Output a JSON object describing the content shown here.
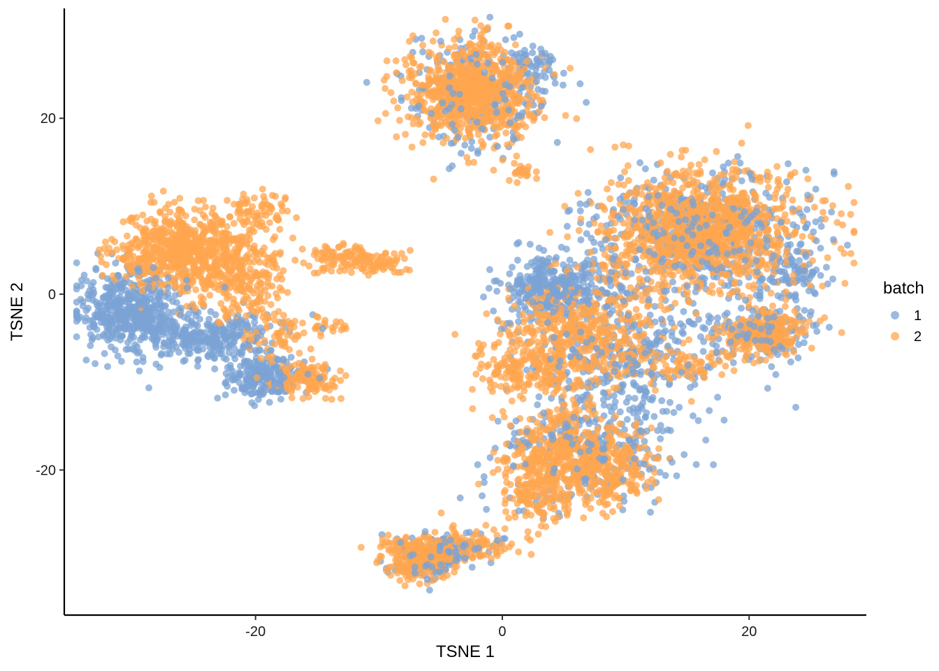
{
  "chart_data": {
    "type": "scatter",
    "xlabel": "TSNE 1",
    "ylabel": "TSNE 2",
    "xlim": [
      -35.5,
      29.5
    ],
    "ylim": [
      -36.5,
      32.5
    ],
    "x_ticks": [
      -20,
      0,
      20
    ],
    "y_ticks": [
      -20,
      0,
      20
    ],
    "x_tick_labels": [
      "-20",
      "0",
      "20"
    ],
    "y_tick_labels": [
      "-20",
      "0",
      "20"
    ],
    "grid": false,
    "legend": {
      "title": "batch",
      "position": "right",
      "entries": [
        {
          "label": "1",
          "color": "#7BA3D4"
        },
        {
          "label": "2",
          "color": "#FFA54F"
        }
      ]
    },
    "point_alpha": 0.75,
    "series": [
      {
        "name": "1",
        "color": "#7BA3D4",
        "clusters": [
          {
            "cx": -30,
            "cy": -2,
            "sx": 2.2,
            "sy": 2.4,
            "n": 520
          },
          {
            "cx": -23.5,
            "cy": -5,
            "sx": 2.6,
            "sy": 1.4,
            "n": 280
          },
          {
            "cx": -19.5,
            "cy": -9.5,
            "sx": 1.8,
            "sy": 1.2,
            "n": 200
          },
          {
            "cx": -2,
            "cy": 23,
            "sx": 3.0,
            "sy": 3.2,
            "n": 220
          },
          {
            "cx": 2.5,
            "cy": 25.5,
            "sx": 1.0,
            "sy": 1.2,
            "n": 60
          },
          {
            "cx": 4.5,
            "cy": 0.5,
            "sx": 2.2,
            "sy": 2.0,
            "n": 380
          },
          {
            "cx": 16,
            "cy": 7,
            "sx": 4.5,
            "sy": 3.6,
            "n": 560
          },
          {
            "cx": 10,
            "cy": -7,
            "sx": 4.0,
            "sy": 3.8,
            "n": 350
          },
          {
            "cx": 7,
            "cy": -18,
            "sx": 3.5,
            "sy": 3.2,
            "n": 300
          },
          {
            "cx": 21,
            "cy": -4.5,
            "sx": 2.0,
            "sy": 1.6,
            "n": 150
          },
          {
            "cx": 23.5,
            "cy": 2,
            "sx": 1.4,
            "sy": 1.6,
            "n": 80
          },
          {
            "cx": -6,
            "cy": -30,
            "sx": 1.5,
            "sy": 1.2,
            "n": 120
          },
          {
            "cx": -3,
            "cy": -29,
            "sx": 2.0,
            "sy": 0.8,
            "n": 50
          }
        ]
      },
      {
        "name": "2",
        "color": "#FFA54F",
        "clusters": [
          {
            "cx": -25.5,
            "cy": 5,
            "sx": 2.8,
            "sy": 2.3,
            "n": 700
          },
          {
            "cx": -21,
            "cy": 2,
            "sx": 1.8,
            "sy": 2.5,
            "n": 200
          },
          {
            "cx": -18.5,
            "cy": -4.5,
            "sx": 1.5,
            "sy": 1.5,
            "n": 60
          },
          {
            "cx": -16,
            "cy": -9.5,
            "sx": 1.4,
            "sy": 1.1,
            "n": 120
          },
          {
            "cx": -20,
            "cy": 9.5,
            "sx": 1.2,
            "sy": 1.0,
            "n": 60
          },
          {
            "cx": -12,
            "cy": 4,
            "sx": 2.0,
            "sy": 0.8,
            "n": 150
          },
          {
            "cx": -14.5,
            "cy": -3.5,
            "sx": 1.0,
            "sy": 0.6,
            "n": 20
          },
          {
            "cx": -2.5,
            "cy": 23,
            "sx": 2.6,
            "sy": 2.8,
            "n": 800
          },
          {
            "cx": 1.5,
            "cy": 13.8,
            "sx": 0.6,
            "sy": 0.4,
            "n": 20
          },
          {
            "cx": 16,
            "cy": 7,
            "sx": 4.2,
            "sy": 3.5,
            "n": 1100
          },
          {
            "cx": 6.5,
            "cy": -5,
            "sx": 3.0,
            "sy": 3.0,
            "n": 450
          },
          {
            "cx": 2,
            "cy": -8.5,
            "sx": 1.8,
            "sy": 1.6,
            "n": 150
          },
          {
            "cx": 5,
            "cy": -18,
            "sx": 2.5,
            "sy": 2.8,
            "n": 400
          },
          {
            "cx": 9,
            "cy": -20,
            "sx": 1.8,
            "sy": 2.0,
            "n": 200
          },
          {
            "cx": 21.5,
            "cy": -4.5,
            "sx": 1.6,
            "sy": 1.3,
            "n": 250
          },
          {
            "cx": 2.5,
            "cy": -22,
            "sx": 1.5,
            "sy": 2.2,
            "n": 150
          },
          {
            "cx": -6.5,
            "cy": -30,
            "sx": 1.4,
            "sy": 1.3,
            "n": 250
          },
          {
            "cx": -2.5,
            "cy": -28.5,
            "sx": 2.2,
            "sy": 0.8,
            "n": 80
          },
          {
            "cx": 14.5,
            "cy": -8,
            "sx": 2.5,
            "sy": 1.2,
            "n": 80
          }
        ]
      }
    ]
  }
}
